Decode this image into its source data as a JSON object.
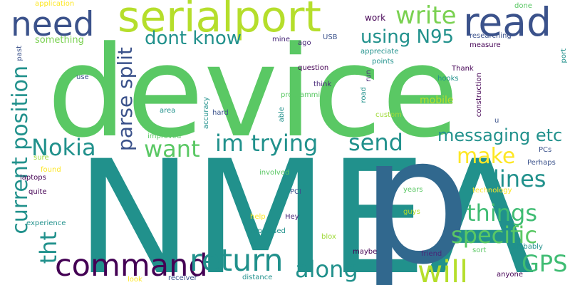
{
  "palette": {
    "green": "#5ac864",
    "teal": "#21918c",
    "blue": "#31688e",
    "navy": "#3b528b",
    "purple": "#482878",
    "dark_purple": "#440154",
    "lime": "#b5de2b",
    "yellow_green": "#a0da39",
    "light_green": "#7ad151",
    "sea_green": "#3fbc73",
    "yellow": "#fde725"
  },
  "words": {
    "device": "device",
    "nmea": "NMEA",
    "p": "p",
    "serialport": "serialport",
    "need": "need",
    "read": "read",
    "write": "write",
    "using_n95": "using N95",
    "dont_know": "dont know",
    "current_position": "current position",
    "parse_split": "parse split",
    "nokia": "Nokia",
    "im_trying": "im trying",
    "send": "send",
    "want": "want",
    "messaging_etc": "messaging etc",
    "make": "make",
    "lines": "lines",
    "things": "things",
    "specific": "specific",
    "tht": "tht",
    "command": "command",
    "return": "return",
    "will": "will",
    "along": "along",
    "gps": "GPS",
    "application": "application",
    "something": "something",
    "past": "past",
    "mine": "mine",
    "ago": "ago",
    "usb": "USB",
    "work": "work",
    "done": "done",
    "researching": "researching",
    "measure": "measure",
    "port": "port",
    "appreciate": "appreciate",
    "points": "points",
    "thank": "Thank",
    "hooks": "hooks",
    "question": "question",
    "use": "use",
    "run": "run",
    "think": "think",
    "road": "road",
    "construction": "construction",
    "programming": "programming",
    "mobile": "mobile",
    "accuracy": "accuracy",
    "area": "area",
    "hard": "hard",
    "able": "able",
    "custom": "custom",
    "u": "u",
    "improved": "improved",
    "sure": "sure",
    "pcs": "PCs",
    "found": "found",
    "involved": "involved",
    "perhaps": "Perhaps",
    "laptops": "laptops",
    "quite": "quite",
    "pci": "PCI",
    "years": "years",
    "technology": "technology",
    "guys": "guys",
    "experience": "experience",
    "help": "help",
    "hey": "Hey",
    "impressed": "impressed",
    "blox": "blox",
    "maybe": "maybe",
    "friend": "friend",
    "sort": "sort",
    "probably": "probably",
    "look": "look",
    "receiver": "receiver",
    "distance": "distance",
    "anyone": "anyone"
  }
}
